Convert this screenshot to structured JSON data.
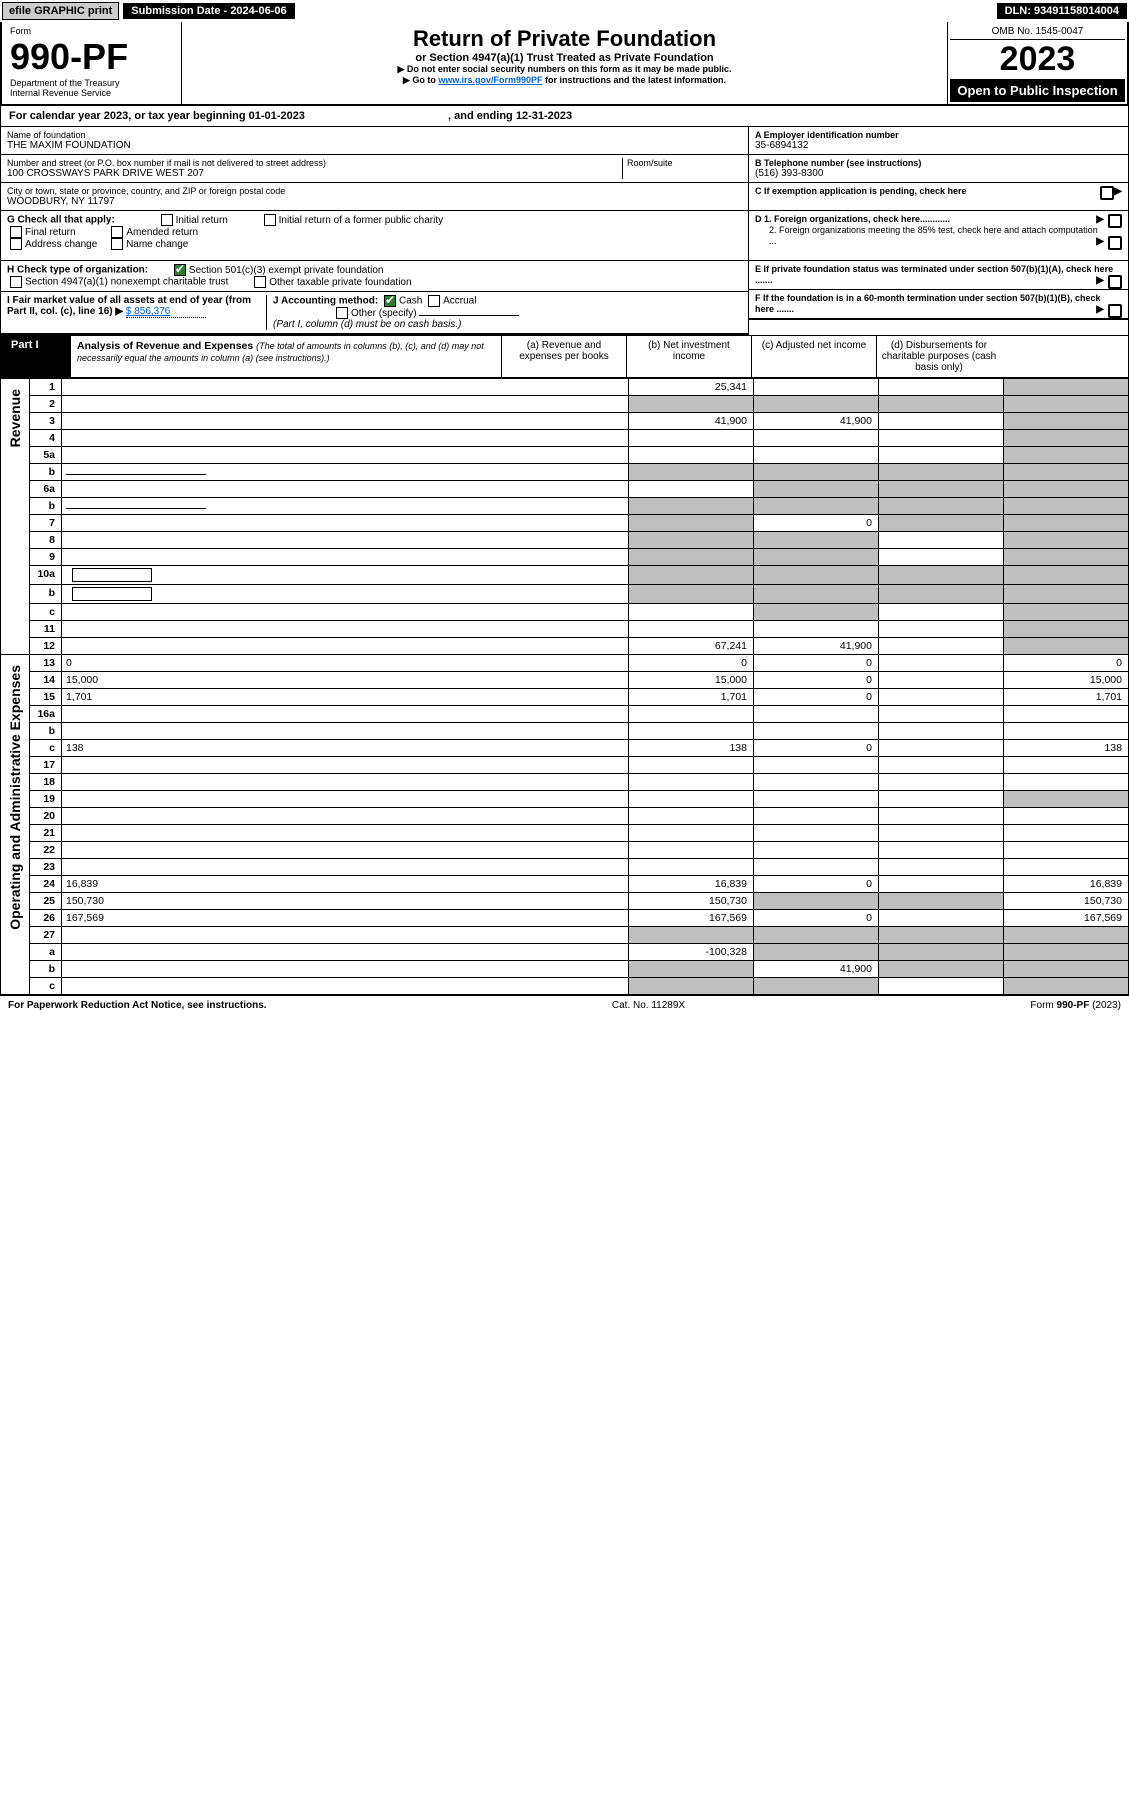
{
  "topbar": {
    "efile": "efile GRAPHIC print",
    "submission": "Submission Date - 2024-06-06",
    "dln": "DLN: 93491158014004"
  },
  "header": {
    "form_label": "Form",
    "form_num": "990-PF",
    "dept": "Department of the Treasury",
    "irs": "Internal Revenue Service",
    "title": "Return of Private Foundation",
    "subtitle": "or Section 4947(a)(1) Trust Treated as Private Foundation",
    "note1": "▶ Do not enter social security numbers on this form as it may be made public.",
    "note2_pre": "▶ Go to ",
    "note2_link": "www.irs.gov/Form990PF",
    "note2_post": " for instructions and the latest information.",
    "omb": "OMB No. 1545-0047",
    "year": "2023",
    "open": "Open to Public Inspection"
  },
  "calyear": {
    "text_pre": "For calendar year 2023, or tax year beginning ",
    "begin": "01-01-2023",
    "mid": " , and ending ",
    "end": "12-31-2023"
  },
  "entity": {
    "name_label": "Name of foundation",
    "name": "THE MAXIM FOUNDATION",
    "addr_label": "Number and street (or P.O. box number if mail is not delivered to street address)",
    "addr": "100 CROSSWAYS PARK DRIVE WEST 207",
    "room_label": "Room/suite",
    "city_label": "City or town, state or province, country, and ZIP or foreign postal code",
    "city": "WOODBURY, NY  11797",
    "a_label": "A Employer identification number",
    "a_val": "35-6894132",
    "b_label": "B Telephone number (see instructions)",
    "b_val": "(516) 393-8300",
    "c_label": "C If exemption application is pending, check here",
    "d1": "D 1. Foreign organizations, check here............",
    "d2": "2. Foreign organizations meeting the 85% test, check here and attach computation ...",
    "e_label": "E  If private foundation status was terminated under section 507(b)(1)(A), check here .......",
    "f_label": "F  If the foundation is in a 60-month termination under section 507(b)(1)(B), check here .......",
    "g_label": "G Check all that apply:",
    "g_opts": [
      "Initial return",
      "Initial return of a former public charity",
      "Final return",
      "Amended return",
      "Address change",
      "Name change"
    ],
    "h_label": "H Check type of organization:",
    "h_opt1": "Section 501(c)(3) exempt private foundation",
    "h_opt2": "Section 4947(a)(1) nonexempt charitable trust",
    "h_opt3": "Other taxable private foundation",
    "i_label": "I Fair market value of all assets at end of year (from Part II, col. (c), line 16)",
    "i_val": "$  856,376",
    "j_label": "J Accounting method:",
    "j_opts": [
      "Cash",
      "Accrual",
      "Other (specify)"
    ],
    "j_note": "(Part I, column (d) must be on cash basis.)"
  },
  "part1": {
    "label": "Part I",
    "title": "Analysis of Revenue and Expenses",
    "title_note": "(The total of amounts in columns (b), (c), and (d) may not necessarily equal the amounts in column (a) (see instructions).)",
    "col_a": "(a)    Revenue and expenses per books",
    "col_b": "(b)   Net investment income",
    "col_c": "(c)   Adjusted net income",
    "col_d": "(d)   Disbursements for charitable purposes (cash basis only)"
  },
  "side_labels": {
    "rev": "Revenue",
    "oae": "Operating and Administrative Expenses"
  },
  "rows": [
    {
      "n": "1",
      "d": "",
      "a": "25,341",
      "b": "",
      "c": "",
      "shade_d": true
    },
    {
      "n": "2",
      "d": "",
      "a": "",
      "b": "",
      "c": "",
      "shade_all": true
    },
    {
      "n": "3",
      "d": "",
      "a": "41,900",
      "b": "41,900",
      "c": "",
      "shade_d": true
    },
    {
      "n": "4",
      "d": "",
      "a": "",
      "b": "",
      "c": "",
      "shade_d": true
    },
    {
      "n": "5a",
      "d": "",
      "a": "",
      "b": "",
      "c": "",
      "shade_d": true
    },
    {
      "n": "b",
      "d": "",
      "a": "",
      "b": "",
      "c": "",
      "shade_all": true,
      "has_line": true
    },
    {
      "n": "6a",
      "d": "",
      "a": "",
      "b": "",
      "c": "",
      "shade_bcd": true
    },
    {
      "n": "b",
      "d": "",
      "a": "",
      "b": "",
      "c": "",
      "shade_all": true,
      "has_line": true
    },
    {
      "n": "7",
      "d": "",
      "a": "",
      "b": "0",
      "c": "",
      "shade_a": true,
      "shade_cd": true
    },
    {
      "n": "8",
      "d": "",
      "a": "",
      "b": "",
      "c": "",
      "shade_ab": true,
      "shade_d": true
    },
    {
      "n": "9",
      "d": "",
      "a": "",
      "b": "",
      "c": "",
      "shade_ab": true,
      "shade_d": true
    },
    {
      "n": "10a",
      "d": "",
      "a": "",
      "b": "",
      "c": "",
      "shade_all": true,
      "has_box": true
    },
    {
      "n": "b",
      "d": "",
      "a": "",
      "b": "",
      "c": "",
      "shade_all": true,
      "has_box": true
    },
    {
      "n": "c",
      "d": "",
      "a": "",
      "b": "",
      "c": "",
      "shade_b": true,
      "shade_d": true
    },
    {
      "n": "11",
      "d": "",
      "a": "",
      "b": "",
      "c": "",
      "shade_d": true
    },
    {
      "n": "12",
      "d": "",
      "a": "67,241",
      "b": "41,900",
      "c": "",
      "shade_d": true
    },
    {
      "n": "13",
      "d": "0",
      "a": "0",
      "b": "0",
      "c": ""
    },
    {
      "n": "14",
      "d": "15,000",
      "a": "15,000",
      "b": "0",
      "c": ""
    },
    {
      "n": "15",
      "d": "1,701",
      "a": "1,701",
      "b": "0",
      "c": ""
    },
    {
      "n": "16a",
      "d": "",
      "a": "",
      "b": "",
      "c": ""
    },
    {
      "n": "b",
      "d": "",
      "a": "",
      "b": "",
      "c": ""
    },
    {
      "n": "c",
      "d": "138",
      "a": "138",
      "b": "0",
      "c": ""
    },
    {
      "n": "17",
      "d": "",
      "a": "",
      "b": "",
      "c": ""
    },
    {
      "n": "18",
      "d": "",
      "a": "",
      "b": "",
      "c": ""
    },
    {
      "n": "19",
      "d": "",
      "a": "",
      "b": "",
      "c": "",
      "shade_d": true
    },
    {
      "n": "20",
      "d": "",
      "a": "",
      "b": "",
      "c": ""
    },
    {
      "n": "21",
      "d": "",
      "a": "",
      "b": "",
      "c": ""
    },
    {
      "n": "22",
      "d": "",
      "a": "",
      "b": "",
      "c": ""
    },
    {
      "n": "23",
      "d": "",
      "a": "",
      "b": "",
      "c": ""
    },
    {
      "n": "24",
      "d": "16,839",
      "a": "16,839",
      "b": "0",
      "c": ""
    },
    {
      "n": "25",
      "d": "150,730",
      "a": "150,730",
      "b": "",
      "c": "",
      "shade_bc": true
    },
    {
      "n": "26",
      "d": "167,569",
      "a": "167,569",
      "b": "0",
      "c": ""
    },
    {
      "n": "27",
      "d": "",
      "a": "",
      "b": "",
      "c": "",
      "shade_all": true
    },
    {
      "n": "a",
      "d": "",
      "a": "-100,328",
      "b": "",
      "c": "",
      "shade_bcd": true
    },
    {
      "n": "b",
      "d": "",
      "a": "",
      "b": "41,900",
      "c": "",
      "shade_a": true,
      "shade_cd": true
    },
    {
      "n": "c",
      "d": "",
      "a": "",
      "b": "",
      "c": "",
      "shade_ab": true,
      "shade_d": true
    }
  ],
  "footer": {
    "left": "For Paperwork Reduction Act Notice, see instructions.",
    "center": "Cat. No. 11289X",
    "right": "Form 990-PF (2023)"
  },
  "colors": {
    "black": "#000000",
    "shade": "#bfbfbf",
    "link": "#0066cc",
    "check_green": "#2e7d32"
  }
}
